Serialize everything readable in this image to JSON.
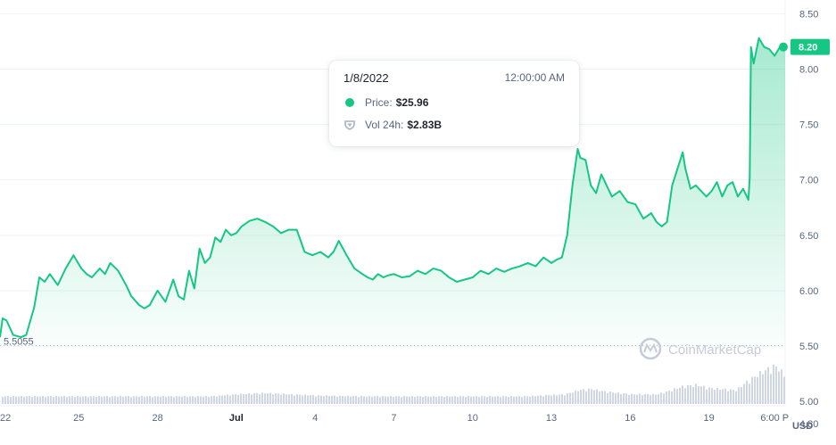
{
  "colors": {
    "line": "#16c784",
    "volume": "#cfd6e4",
    "grid": "#eff2f5",
    "badge": "#16c784"
  },
  "tooltip": {
    "date": "1/8/2022",
    "time": "12:00:00 AM",
    "price_label": "Price:",
    "price_value": "$25.96",
    "vol_label": "Vol 24h:",
    "vol_value": "$2.83B"
  },
  "watermark": "CoinMarketCap",
  "currency_label": "USD",
  "chart_data": {
    "type": "area",
    "y_ticks": [
      "8.50",
      "8.00",
      "7.50",
      "7.00",
      "6.50",
      "6.00",
      "5.50",
      "5.00",
      "4.80"
    ],
    "ylim": [
      4.8,
      8.6
    ],
    "x_ticks": [
      "22",
      "25",
      "28",
      "Jul",
      "4",
      "7",
      "10",
      "13",
      "16",
      "19",
      "6:00 P"
    ],
    "x_tick_values": [
      0,
      3,
      6,
      9,
      12,
      15,
      18,
      21,
      24,
      27,
      29.5
    ],
    "xlim": [
      0,
      29.9
    ],
    "baseline": "5.5055",
    "current_price": "8.20",
    "series": [
      {
        "x": [
          0,
          0.1,
          0.25,
          0.5,
          0.8,
          1.0,
          1.3,
          1.5,
          1.7,
          1.9,
          2.2,
          2.5,
          2.8,
          3.1,
          3.3,
          3.5,
          3.8,
          4.0,
          4.2,
          4.5,
          4.8,
          5.0,
          5.3,
          5.5,
          5.7,
          6.0,
          6.3,
          6.6,
          6.8,
          7.0,
          7.2,
          7.4,
          7.6,
          7.8,
          8.0,
          8.2,
          8.4,
          8.6,
          8.8,
          9.0,
          9.2,
          9.5,
          9.8,
          10.1,
          10.4,
          10.7,
          11.0,
          11.3,
          11.6,
          11.9,
          12.2,
          12.5,
          12.7,
          12.9,
          13.2,
          13.5,
          13.8,
          14.0,
          14.2,
          14.4,
          14.6,
          14.8,
          15.0,
          15.3,
          15.6,
          15.9,
          16.2,
          16.5,
          16.8,
          17.1,
          17.4,
          17.7,
          18.0,
          18.3,
          18.6,
          18.9,
          19.2,
          19.5,
          19.8,
          20.1,
          20.4,
          20.7,
          21.0,
          21.2,
          21.4,
          21.6,
          21.8,
          22.0,
          22.1,
          22.3,
          22.5,
          22.7,
          22.9,
          23.1,
          23.3,
          23.6,
          23.9,
          24.2,
          24.5,
          24.8,
          25.0,
          25.2,
          25.4,
          25.6,
          25.8,
          26.0,
          26.1,
          26.3,
          26.5,
          26.7,
          26.9,
          27.1,
          27.3,
          27.5,
          27.7,
          27.9,
          28.1,
          28.3,
          28.5,
          28.55,
          28.6,
          28.7,
          28.9,
          29.1,
          29.3,
          29.5,
          29.7,
          29.9
        ],
        "values": [
          5.58,
          5.75,
          5.73,
          5.6,
          5.58,
          5.6,
          5.85,
          6.12,
          6.08,
          6.15,
          6.05,
          6.2,
          6.32,
          6.2,
          6.15,
          6.12,
          6.2,
          6.15,
          6.25,
          6.18,
          6.05,
          5.95,
          5.87,
          5.84,
          5.87,
          6.0,
          5.9,
          6.1,
          5.95,
          5.92,
          6.18,
          6.02,
          6.38,
          6.25,
          6.3,
          6.48,
          6.44,
          6.55,
          6.5,
          6.52,
          6.58,
          6.63,
          6.65,
          6.62,
          6.58,
          6.52,
          6.55,
          6.55,
          6.35,
          6.32,
          6.35,
          6.3,
          6.35,
          6.45,
          6.32,
          6.2,
          6.15,
          6.12,
          6.1,
          6.15,
          6.12,
          6.14,
          6.15,
          6.12,
          6.13,
          6.18,
          6.15,
          6.2,
          6.18,
          6.12,
          6.08,
          6.1,
          6.12,
          6.18,
          6.15,
          6.2,
          6.17,
          6.2,
          6.22,
          6.25,
          6.22,
          6.3,
          6.25,
          6.28,
          6.3,
          6.5,
          6.95,
          7.28,
          7.2,
          7.18,
          6.95,
          6.88,
          7.05,
          6.95,
          6.85,
          6.9,
          6.8,
          6.78,
          6.65,
          6.7,
          6.62,
          6.58,
          6.62,
          6.95,
          7.1,
          7.25,
          7.1,
          6.92,
          6.95,
          6.9,
          6.85,
          6.9,
          6.98,
          6.85,
          6.95,
          6.98,
          6.85,
          6.92,
          6.82,
          7.02,
          8.2,
          8.05,
          8.28,
          8.2,
          8.18,
          8.12,
          8.2,
          8.2
        ]
      }
    ],
    "volume_x": [
      0,
      2,
      4,
      6,
      8,
      9,
      10,
      12,
      14,
      16,
      18,
      20,
      21.5,
      22,
      22.5,
      23,
      24,
      25,
      25.5,
      26,
      26.5,
      27,
      28,
      28.5,
      29,
      29.5,
      29.9
    ],
    "volume": [
      1,
      1,
      1,
      1,
      1,
      1.5,
      1.8,
      1.2,
      1,
      1,
      1,
      1,
      1.5,
      2.5,
      2.8,
      2.2,
      1.5,
      1.5,
      2.4,
      3.5,
      3.8,
      3,
      2.5,
      5,
      7,
      8.5,
      6
    ]
  }
}
